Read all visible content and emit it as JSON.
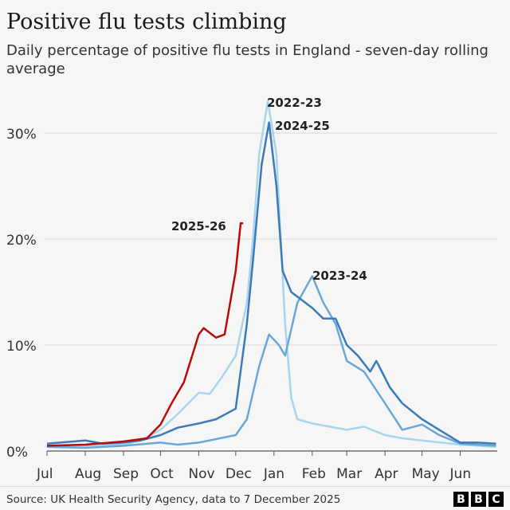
{
  "title": "Positive flu tests climbing",
  "subtitle": "Daily percentage of positive flu tests in England - seven-day rolling average",
  "source": "Source: UK Health Security Agency, data to 7 December 2025",
  "logo": "BBC",
  "chart_data": {
    "type": "line",
    "xlabel": "",
    "ylabel": "",
    "ylim": [
      0,
      32
    ],
    "y_ticks": [
      {
        "v": 0,
        "label": "0%"
      },
      {
        "v": 10,
        "label": "10%"
      },
      {
        "v": 20,
        "label": "20%"
      },
      {
        "v": 30,
        "label": "30%"
      }
    ],
    "x_ticks": [
      "Jul",
      "Aug",
      "Sep",
      "Oct",
      "Nov",
      "Dec",
      "Jan",
      "Feb",
      "Mar",
      "Apr",
      "May",
      "Jun"
    ],
    "grid": true,
    "series": [
      {
        "name": "2022-23",
        "color": "#a8d5ee",
        "points": [
          [
            "07-01",
            0.5
          ],
          [
            "08-01",
            0.5
          ],
          [
            "09-01",
            0.6
          ],
          [
            "09-15",
            1
          ],
          [
            "10-01",
            2
          ],
          [
            "10-15",
            3.5
          ],
          [
            "11-01",
            5.5
          ],
          [
            "11-10",
            5.4
          ],
          [
            "11-20",
            7
          ],
          [
            "12-01",
            9
          ],
          [
            "12-10",
            14
          ],
          [
            "12-15",
            20
          ],
          [
            "12-20",
            28
          ],
          [
            "12-27",
            33
          ],
          [
            "01-03",
            28
          ],
          [
            "01-10",
            12
          ],
          [
            "01-15",
            5
          ],
          [
            "01-20",
            3
          ],
          [
            "02-01",
            2.6
          ],
          [
            "02-15",
            2.3
          ],
          [
            "03-01",
            2
          ],
          [
            "03-15",
            2.3
          ],
          [
            "04-01",
            1.5
          ],
          [
            "04-15",
            1.2
          ],
          [
            "05-01",
            1
          ],
          [
            "06-01",
            0.6
          ],
          [
            "06-30",
            0.4
          ]
        ]
      },
      {
        "name": "2023-24",
        "color": "#6ba7d6",
        "points": [
          [
            "07-01",
            0.4
          ],
          [
            "08-01",
            0.3
          ],
          [
            "09-01",
            0.5
          ],
          [
            "10-01",
            0.8
          ],
          [
            "10-15",
            0.6
          ],
          [
            "11-01",
            0.8
          ],
          [
            "12-01",
            1.5
          ],
          [
            "12-10",
            3
          ],
          [
            "12-20",
            8
          ],
          [
            "12-28",
            11
          ],
          [
            "01-05",
            10
          ],
          [
            "01-10",
            9
          ],
          [
            "01-20",
            14
          ],
          [
            "02-01",
            16.5
          ],
          [
            "02-10",
            14
          ],
          [
            "02-20",
            12
          ],
          [
            "03-01",
            8.5
          ],
          [
            "03-15",
            7.5
          ],
          [
            "04-01",
            4.5
          ],
          [
            "04-15",
            2
          ],
          [
            "05-01",
            2.5
          ],
          [
            "05-15",
            1.5
          ],
          [
            "06-01",
            0.7
          ],
          [
            "06-30",
            0.5
          ]
        ]
      },
      {
        "name": "2024-25",
        "color": "#3b7bb9",
        "points": [
          [
            "07-01",
            0.7
          ],
          [
            "08-01",
            1
          ],
          [
            "08-15",
            0.7
          ],
          [
            "09-01",
            0.8
          ],
          [
            "09-15",
            1
          ],
          [
            "10-01",
            1.5
          ],
          [
            "10-15",
            2.2
          ],
          [
            "11-01",
            2.6
          ],
          [
            "11-15",
            3
          ],
          [
            "12-01",
            4
          ],
          [
            "12-10",
            12
          ],
          [
            "12-15",
            18
          ],
          [
            "12-22",
            27
          ],
          [
            "12-28",
            31
          ],
          [
            "01-03",
            25
          ],
          [
            "01-08",
            17
          ],
          [
            "01-15",
            15
          ],
          [
            "02-01",
            13.5
          ],
          [
            "02-10",
            12.5
          ],
          [
            "02-20",
            12.5
          ],
          [
            "03-01",
            10
          ],
          [
            "03-10",
            9
          ],
          [
            "03-20",
            7.5
          ],
          [
            "03-25",
            8.5
          ],
          [
            "04-05",
            6
          ],
          [
            "04-15",
            4.5
          ],
          [
            "05-01",
            3
          ],
          [
            "05-15",
            2
          ],
          [
            "06-01",
            0.8
          ],
          [
            "06-15",
            0.8
          ],
          [
            "06-30",
            0.7
          ]
        ]
      },
      {
        "name": "2025-26",
        "color": "#b80c09",
        "points": [
          [
            "07-01",
            0.5
          ],
          [
            "08-01",
            0.6
          ],
          [
            "09-01",
            0.9
          ],
          [
            "09-20",
            1.2
          ],
          [
            "10-01",
            2.5
          ],
          [
            "10-10",
            4.5
          ],
          [
            "10-20",
            6.5
          ],
          [
            "11-01",
            11
          ],
          [
            "11-05",
            11.6
          ],
          [
            "11-15",
            10.7
          ],
          [
            "11-22",
            11
          ],
          [
            "12-01",
            17
          ],
          [
            "12-05",
            21.5
          ],
          [
            "12-07",
            21.5
          ]
        ]
      }
    ]
  }
}
